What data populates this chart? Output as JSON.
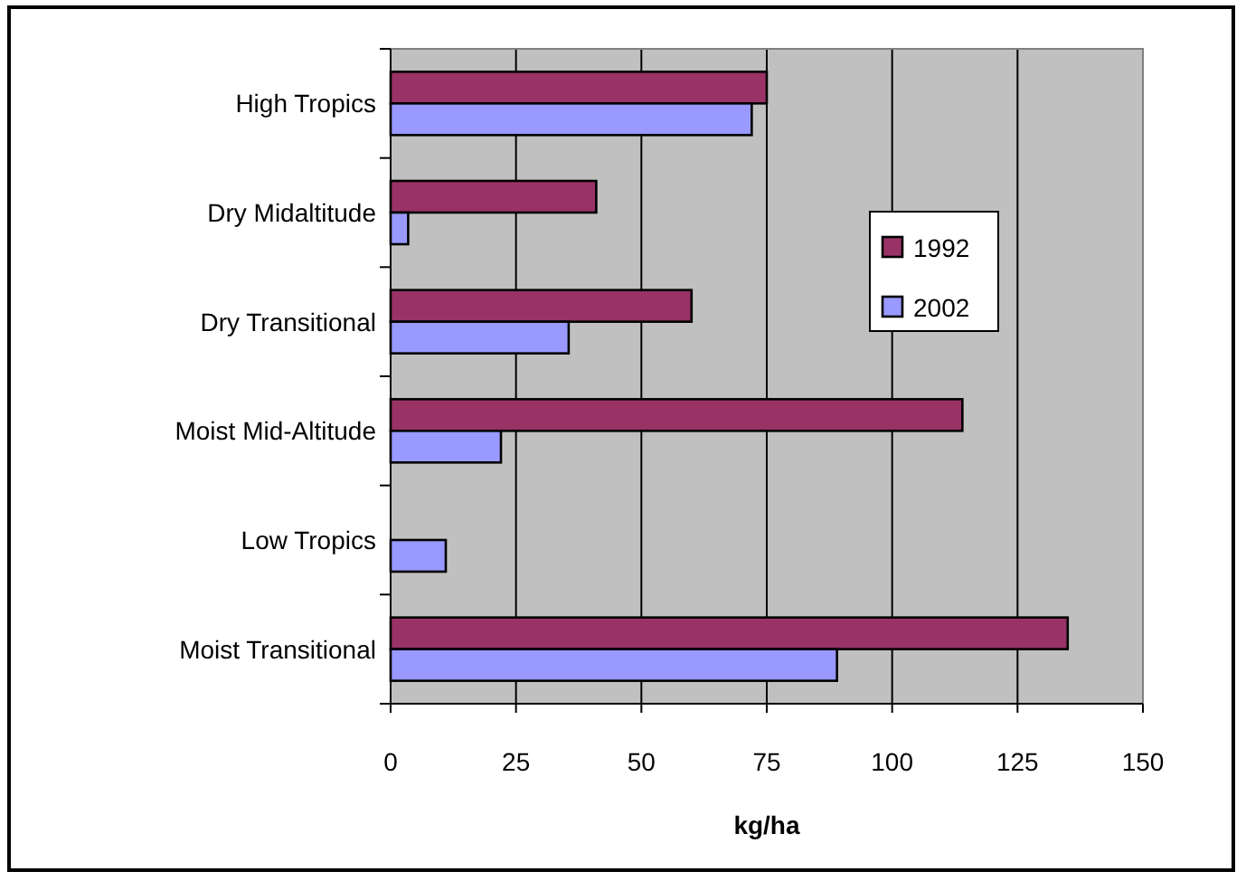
{
  "chart_data": {
    "type": "bar",
    "orientation": "horizontal",
    "xlabel": "kg/ha",
    "categories": [
      "High Tropics",
      "Dry Midaltitude",
      "Dry Transitional",
      "Moist Mid-Altitude",
      "Low Tropics",
      "Moist Transitional"
    ],
    "series": [
      {
        "name": "1992",
        "color": "#993366",
        "values": [
          75,
          41,
          60,
          114,
          null,
          135
        ]
      },
      {
        "name": "2002",
        "color": "#9999ff",
        "values": [
          72,
          3.5,
          35.5,
          22,
          11,
          89
        ]
      }
    ],
    "xlim": [
      0,
      150
    ],
    "xticks": [
      0,
      25,
      50,
      75,
      100,
      125,
      150
    ],
    "grid": "x",
    "legend": "right"
  }
}
